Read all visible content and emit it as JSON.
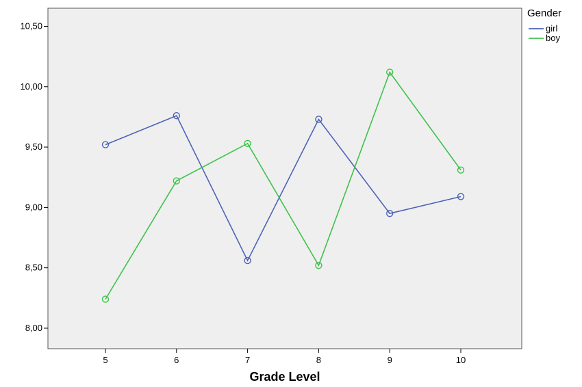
{
  "chart_data": {
    "type": "line",
    "title": "",
    "xlabel": "Grade Level",
    "ylabel": "",
    "categories": [
      "5",
      "6",
      "7",
      "8",
      "9",
      "10"
    ],
    "y_ticks": [
      "8,00",
      "8,50",
      "9,00",
      "9,50",
      "10,00",
      "10,50"
    ],
    "ylim": [
      7.83,
      10.65
    ],
    "grid": false,
    "plot_background": "#efefef",
    "legend": {
      "title": "Gender",
      "position": "right"
    },
    "series": [
      {
        "name": "girl",
        "color": "#4e63b9",
        "values": [
          9.52,
          9.76,
          8.56,
          9.73,
          8.95,
          9.09
        ]
      },
      {
        "name": "boy",
        "color": "#3fc24b",
        "values": [
          8.24,
          9.22,
          9.53,
          8.52,
          10.12,
          9.31
        ]
      }
    ]
  }
}
